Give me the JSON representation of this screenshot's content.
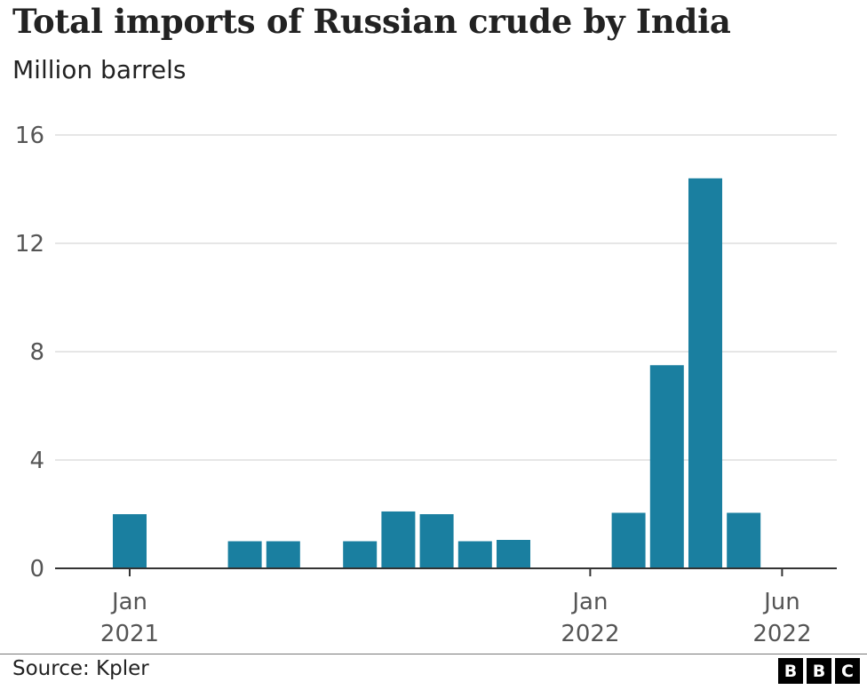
{
  "chart_data": {
    "type": "bar",
    "title": "Total imports of Russian crude by India",
    "subtitle": "Million barrels",
    "xlabel": "",
    "ylabel": "",
    "ylim": [
      0,
      16
    ],
    "yticks": [
      0,
      4,
      8,
      12,
      16
    ],
    "grid": true,
    "color": "#1a7fa0",
    "categories": [
      "2020-12",
      "2021-01",
      "2021-02",
      "2021-03",
      "2021-04",
      "2021-05",
      "2021-06",
      "2021-07",
      "2021-08",
      "2021-09",
      "2021-10",
      "2021-11",
      "2021-12",
      "2022-01",
      "2022-02",
      "2022-03",
      "2022-04",
      "2022-05",
      "2022-06"
    ],
    "values": [
      0,
      2.0,
      0,
      0,
      1.0,
      1.0,
      0,
      1.0,
      2.1,
      2.0,
      1.0,
      1.05,
      0,
      0,
      2.05,
      7.5,
      14.4,
      2.05,
      0
    ],
    "x_tick_labels": [
      {
        "category": "2021-01",
        "month": "Jan",
        "year": "2021"
      },
      {
        "category": "2022-01",
        "month": "Jan",
        "year": "2022"
      },
      {
        "category": "2022-06",
        "month": "Jun",
        "year": "2022"
      }
    ]
  },
  "footer": {
    "source": "Source: Kpler",
    "logo_letters": [
      "B",
      "B",
      "C"
    ]
  }
}
